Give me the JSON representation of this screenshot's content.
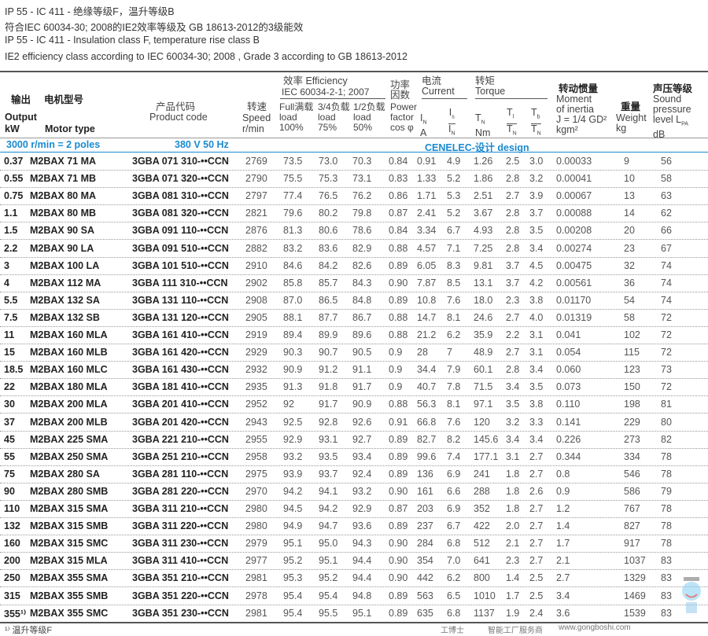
{
  "notes": [
    "IP 55 - IC 411 - 绝缘等级F，温升等级B",
    "符合IEC 60034-30; 2008的IE2效率等级及 GB 18613-2012的3级能效",
    "IP 55 - IC 411 - Insulation class F, temperature rise class B",
    "IE2 efficiency class according to IEC 60034-30; 2008 , Grade 3 according to GB 18613-2012"
  ],
  "header": {
    "output_cn": "输出",
    "motor_cn": "电机型号",
    "output_en": "Output",
    "kw": "kW",
    "motor_en": "Motor type",
    "code_cn": "产品代码",
    "code_en": "Product code",
    "speed_cn": "转速",
    "speed_en": "Speed",
    "speed_unit": "r/min",
    "eff_cn": "效率 Efficiency",
    "eff_std": "IEC 60034-2-1; 2007",
    "eff100": [
      "Full满载",
      "load",
      "100%"
    ],
    "eff75": [
      "3/4负载",
      "load",
      "75%"
    ],
    "eff50": [
      "1/2负载",
      "load",
      "50%"
    ],
    "pf_cn": [
      "功率",
      "因数"
    ],
    "pf_en": [
      "Power",
      "factor",
      "cos φ"
    ],
    "cur_cn": "电流",
    "cur_en": "Current",
    "in": "I",
    "in_unit": "A",
    "is": "I",
    "n": "N",
    "s": "s",
    "torque_cn": "转矩",
    "torque_en": "Torque",
    "tn": "T",
    "tn_unit": "Nm",
    "tl": "T",
    "tb": "T",
    "l": "l",
    "b": "b",
    "inertia_cn": "转动惯量",
    "inertia_en": [
      "Moment",
      "of inertia",
      "J = 1/4 GD²",
      "kgm²"
    ],
    "weight_cn": "重量",
    "weight_en": "Weight",
    "weight_unit": "kg",
    "spl_cn": "声压等级",
    "spl_en": [
      "Sound",
      "pressure",
      "level L",
      "dB"
    ],
    "pa": "PA"
  },
  "section": {
    "poles": "3000 r/min = 2 poles",
    "voltage": "380 V 50 Hz",
    "design": "CENELEC-设计 design"
  },
  "rows": [
    [
      "0.37",
      "M2BAX 71 MA",
      "3GBA 071 310-••CCN",
      "2769",
      "73.5",
      "73.0",
      "70.3",
      "0.84",
      "0.91",
      "4.9",
      "1.26",
      "2.5",
      "3.0",
      "0.00033",
      "9",
      "56"
    ],
    [
      "0.55",
      "M2BAX 71 MB",
      "3GBA 071 320-••CCN",
      "2790",
      "75.5",
      "75.3",
      "73.1",
      "0.83",
      "1.33",
      "5.2",
      "1.86",
      "2.8",
      "3.2",
      "0.00041",
      "10",
      "58"
    ],
    [
      "0.75",
      "M2BAX 80 MA",
      "3GBA 081 310-••CCN",
      "2797",
      "77.4",
      "76.5",
      "76.2",
      "0.86",
      "1.71",
      "5.3",
      "2.51",
      "2.7",
      "3.9",
      "0.00067",
      "13",
      "63"
    ],
    [
      "1.1",
      "M2BAX 80 MB",
      "3GBA 081 320-••CCN",
      "2821",
      "79.6",
      "80.2",
      "79.8",
      "0.87",
      "2.41",
      "5.2",
      "3.67",
      "2.8",
      "3.7",
      "0.00088",
      "14",
      "62"
    ],
    [
      "1.5",
      "M2BAX 90 SA",
      "3GBA 091 110-••CCN",
      "2876",
      "81.3",
      "80.6",
      "78.6",
      "0.84",
      "3.34",
      "6.7",
      "4.93",
      "2.8",
      "3.5",
      "0.00208",
      "20",
      "66"
    ],
    [
      "2.2",
      "M2BAX 90 LA",
      "3GBA 091 510-••CCN",
      "2882",
      "83.2",
      "83.6",
      "82.9",
      "0.88",
      "4.57",
      "7.1",
      "7.25",
      "2.8",
      "3.4",
      "0.00274",
      "23",
      "67"
    ],
    [
      "3",
      "M2BAX 100 LA",
      "3GBA 101 510-••CCN",
      "2910",
      "84.6",
      "84.2",
      "82.6",
      "0.89",
      "6.05",
      "8.3",
      "9.81",
      "3.7",
      "4.5",
      "0.00475",
      "32",
      "74"
    ],
    [
      "4",
      "M2BAX 112 MA",
      "3GBA 111 310-••CCN",
      "2902",
      "85.8",
      "85.7",
      "84.3",
      "0.90",
      "7.87",
      "8.5",
      "13.1",
      "3.7",
      "4.2",
      "0.00561",
      "36",
      "74"
    ],
    [
      "5.5",
      "M2BAX 132 SA",
      "3GBA 131 110-••CCN",
      "2908",
      "87.0",
      "86.5",
      "84.8",
      "0.89",
      "10.8",
      "7.6",
      "18.0",
      "2.3",
      "3.8",
      "0.01170",
      "54",
      "74"
    ],
    [
      "7.5",
      "M2BAX 132 SB",
      "3GBA 131 120-••CCN",
      "2905",
      "88.1",
      "87.7",
      "86.7",
      "0.88",
      "14.7",
      "8.1",
      "24.6",
      "2.7",
      "4.0",
      "0.01319",
      "58",
      "72"
    ],
    [
      "11",
      "M2BAX 160 MLA",
      "3GBA 161 410-••CCN",
      "2919",
      "89.4",
      "89.9",
      "89.6",
      "0.88",
      "21.2",
      "6.2",
      "35.9",
      "2.2",
      "3.1",
      "0.041",
      "102",
      "72"
    ],
    [
      "15",
      "M2BAX 160 MLB",
      "3GBA 161 420-••CCN",
      "2929",
      "90.3",
      "90.7",
      "90.5",
      "0.9",
      "28",
      "7",
      "48.9",
      "2.7",
      "3.1",
      "0.054",
      "115",
      "72"
    ],
    [
      "18.5",
      "M2BAX 160 MLC",
      "3GBA 161 430-••CCN",
      "2932",
      "90.9",
      "91.2",
      "91.1",
      "0.9",
      "34.4",
      "7.9",
      "60.1",
      "2.8",
      "3.4",
      "0.060",
      "123",
      "73"
    ],
    [
      "22",
      "M2BAX 180 MLA",
      "3GBA 181 410-••CCN",
      "2935",
      "91.3",
      "91.8",
      "91.7",
      "0.9",
      "40.7",
      "7.8",
      "71.5",
      "3.4",
      "3.5",
      "0.073",
      "150",
      "72"
    ],
    [
      "30",
      "M2BAX 200 MLA",
      "3GBA 201 410-••CCN",
      "2952",
      "92",
      "91.7",
      "90.9",
      "0.88",
      "56.3",
      "8.1",
      "97.1",
      "3.5",
      "3.8",
      "0.110",
      "198",
      "81"
    ],
    [
      "37",
      "M2BAX 200 MLB",
      "3GBA 201 420-••CCN",
      "2943",
      "92.5",
      "92.8",
      "92.6",
      "0.91",
      "66.8",
      "7.6",
      "120",
      "3.2",
      "3.3",
      "0.141",
      "229",
      "80"
    ],
    [
      "45",
      "M2BAX 225 SMA",
      "3GBA 221 210-••CCN",
      "2955",
      "92.9",
      "93.1",
      "92.7",
      "0.89",
      "82.7",
      "8.2",
      "145.6",
      "3.4",
      "3.4",
      "0.226",
      "273",
      "82"
    ],
    [
      "55",
      "M2BAX 250 SMA",
      "3GBA 251 210-••CCN",
      "2958",
      "93.2",
      "93.5",
      "93.4",
      "0.89",
      "99.6",
      "7.4",
      "177.1",
      "3.1",
      "2.7",
      "0.344",
      "334",
      "78"
    ],
    [
      "75",
      "M2BAX 280 SA",
      "3GBA 281 110-••CCN",
      "2975",
      "93.9",
      "93.7",
      "92.4",
      "0.89",
      "136",
      "6.9",
      "241",
      "1.8",
      "2.7",
      "0.8",
      "546",
      "78"
    ],
    [
      "90",
      "M2BAX 280 SMB",
      "3GBA 281 220-••CCN",
      "2970",
      "94.2",
      "94.1",
      "93.2",
      "0.90",
      "161",
      "6.6",
      "288",
      "1.8",
      "2.6",
      "0.9",
      "586",
      "79"
    ],
    [
      "110",
      "M2BAX 315 SMA",
      "3GBA 311 210-••CCN",
      "2980",
      "94.5",
      "94.2",
      "92.9",
      "0.87",
      "203",
      "6.9",
      "352",
      "1.8",
      "2.7",
      "1.2",
      "767",
      "78"
    ],
    [
      "132",
      "M2BAX 315 SMB",
      "3GBA 311 220-••CCN",
      "2980",
      "94.9",
      "94.7",
      "93.6",
      "0.89",
      "237",
      "6.7",
      "422",
      "2.0",
      "2.7",
      "1.4",
      "827",
      "78"
    ],
    [
      "160",
      "M2BAX 315 SMC",
      "3GBA 311 230-••CCN",
      "2979",
      "95.1",
      "95.0",
      "94.3",
      "0.90",
      "284",
      "6.8",
      "512",
      "2.1",
      "2.7",
      "1.7",
      "917",
      "78"
    ],
    [
      "200",
      "M2BAX 315 MLA",
      "3GBA 311 410-••CCN",
      "2977",
      "95.2",
      "95.1",
      "94.4",
      "0.90",
      "354",
      "7.0",
      "641",
      "2.3",
      "2.7",
      "2.1",
      "1037",
      "83"
    ],
    [
      "250",
      "M2BAX 355 SMA",
      "3GBA 351 210-••CCN",
      "2981",
      "95.3",
      "95.2",
      "94.4",
      "0.90",
      "442",
      "6.2",
      "800",
      "1.4",
      "2.5",
      "2.7",
      "1329",
      "83"
    ],
    [
      "315",
      "M2BAX 355 SMB",
      "3GBA 351 220-••CCN",
      "2978",
      "95.4",
      "95.4",
      "94.8",
      "0.89",
      "563",
      "6.5",
      "1010",
      "1.7",
      "2.5",
      "3.4",
      "1469",
      "83"
    ],
    [
      "355¹⁾",
      "M2BAX 355 SMC",
      "3GBA 351 230-••CCN",
      "2981",
      "95.4",
      "95.5",
      "95.1",
      "0.89",
      "635",
      "6.8",
      "1137",
      "1.9",
      "2.4",
      "3.6",
      "1539",
      "83"
    ]
  ],
  "footnote": "¹⁾ 温升等级F",
  "watermark": {
    "brand": "工博士",
    "tagline": "智能工厂服务商",
    "url": "www.gongboshi.com"
  },
  "colors": {
    "accent": "#1a8ad0"
  }
}
